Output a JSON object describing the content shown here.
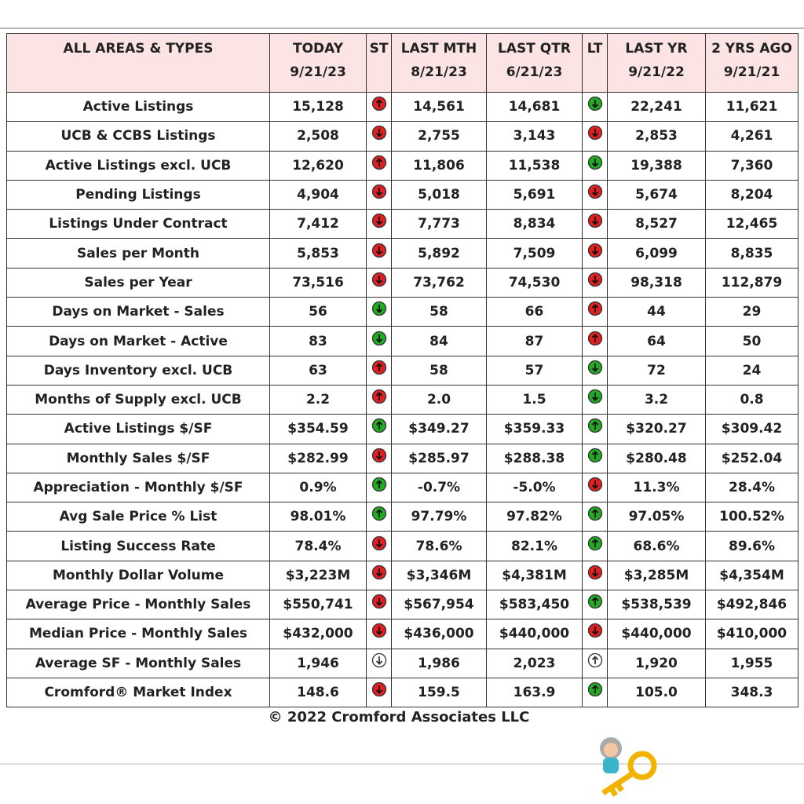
{
  "table": {
    "header": [
      [
        "ALL AREAS & TYPES"
      ],
      [
        "TODAY",
        "9/21/23"
      ],
      [
        "ST"
      ],
      [
        "LAST MTH",
        "8/21/23"
      ],
      [
        "LAST QTR",
        "6/21/23"
      ],
      [
        "LT"
      ],
      [
        "LAST YR",
        "9/21/22"
      ],
      [
        "2 YRS AGO",
        "9/21/21"
      ]
    ],
    "rows": [
      [
        "Active Listings",
        "15,128",
        {
          "arrow": "up",
          "color": "red"
        },
        "14,561",
        "14,681",
        {
          "arrow": "down",
          "color": "green"
        },
        "22,241",
        "11,621"
      ],
      [
        "UCB & CCBS Listings",
        "2,508",
        {
          "arrow": "down",
          "color": "red"
        },
        "2,755",
        "3,143",
        {
          "arrow": "down",
          "color": "red"
        },
        "2,853",
        "4,261"
      ],
      [
        "Active Listings excl. UCB",
        "12,620",
        {
          "arrow": "up",
          "color": "red"
        },
        "11,806",
        "11,538",
        {
          "arrow": "down",
          "color": "green"
        },
        "19,388",
        "7,360"
      ],
      [
        "Pending Listings",
        "4,904",
        {
          "arrow": "down",
          "color": "red"
        },
        "5,018",
        "5,691",
        {
          "arrow": "down",
          "color": "red"
        },
        "5,674",
        "8,204"
      ],
      [
        "Listings Under Contract",
        "7,412",
        {
          "arrow": "down",
          "color": "red"
        },
        "7,773",
        "8,834",
        {
          "arrow": "down",
          "color": "red"
        },
        "8,527",
        "12,465"
      ],
      [
        "Sales per Month",
        "5,853",
        {
          "arrow": "down",
          "color": "red"
        },
        "5,892",
        "7,509",
        {
          "arrow": "down",
          "color": "red"
        },
        "6,099",
        "8,835"
      ],
      [
        "Sales per Year",
        "73,516",
        {
          "arrow": "down",
          "color": "red"
        },
        "73,762",
        "74,530",
        {
          "arrow": "down",
          "color": "red"
        },
        "98,318",
        "112,879"
      ],
      [
        "Days on Market - Sales",
        "56",
        {
          "arrow": "down",
          "color": "green"
        },
        "58",
        "66",
        {
          "arrow": "up",
          "color": "red"
        },
        "44",
        "29"
      ],
      [
        "Days on Market - Active",
        "83",
        {
          "arrow": "down",
          "color": "green"
        },
        "84",
        "87",
        {
          "arrow": "up",
          "color": "red"
        },
        "64",
        "50"
      ],
      [
        "Days Inventory excl. UCB",
        "63",
        {
          "arrow": "up",
          "color": "red"
        },
        "58",
        "57",
        {
          "arrow": "down",
          "color": "green"
        },
        "72",
        "24"
      ],
      [
        "Months of Supply excl. UCB",
        "2.2",
        {
          "arrow": "up",
          "color": "red"
        },
        "2.0",
        "1.5",
        {
          "arrow": "down",
          "color": "green"
        },
        "3.2",
        "0.8"
      ],
      [
        "Active Listings $/SF",
        "$354.59",
        {
          "arrow": "up",
          "color": "green"
        },
        "$349.27",
        "$359.33",
        {
          "arrow": "up",
          "color": "green"
        },
        "$320.27",
        "$309.42"
      ],
      [
        "Monthly Sales $/SF",
        "$282.99",
        {
          "arrow": "down",
          "color": "red"
        },
        "$285.97",
        "$288.38",
        {
          "arrow": "up",
          "color": "green"
        },
        "$280.48",
        "$252.04"
      ],
      [
        "Appreciation - Monthly $/SF",
        "0.9%",
        {
          "arrow": "up",
          "color": "green"
        },
        "-0.7%",
        "-5.0%",
        {
          "arrow": "down",
          "color": "red"
        },
        "11.3%",
        "28.4%"
      ],
      [
        "Avg Sale Price % List",
        "98.01%",
        {
          "arrow": "up",
          "color": "green"
        },
        "97.79%",
        "97.82%",
        {
          "arrow": "up",
          "color": "green"
        },
        "97.05%",
        "100.52%"
      ],
      [
        "Listing Success Rate",
        "78.4%",
        {
          "arrow": "down",
          "color": "red"
        },
        "78.6%",
        "82.1%",
        {
          "arrow": "up",
          "color": "green"
        },
        "68.6%",
        "89.6%"
      ],
      [
        "Monthly Dollar Volume",
        "$3,223M",
        {
          "arrow": "down",
          "color": "red"
        },
        "$3,346M",
        "$4,381M",
        {
          "arrow": "down",
          "color": "red"
        },
        "$3,285M",
        "$4,354M"
      ],
      [
        "Average Price - Monthly Sales",
        "$550,741",
        {
          "arrow": "down",
          "color": "red"
        },
        "$567,954",
        "$583,450",
        {
          "arrow": "up",
          "color": "green"
        },
        "$538,539",
        "$492,846"
      ],
      [
        "Median Price - Monthly Sales",
        "$432,000",
        {
          "arrow": "down",
          "color": "red"
        },
        "$436,000",
        "$440,000",
        {
          "arrow": "down",
          "color": "red"
        },
        "$440,000",
        "$410,000"
      ],
      [
        "Average SF - Monthly Sales",
        "1,946",
        {
          "arrow": "down",
          "color": "white"
        },
        "1,986",
        "2,023",
        {
          "arrow": "up",
          "color": "white"
        },
        "1,920",
        "1,955"
      ],
      [
        "Cromford® Market Index",
        "148.6",
        {
          "arrow": "down",
          "color": "red"
        },
        "159.5",
        "163.9",
        {
          "arrow": "up",
          "color": "green"
        },
        "105.0",
        "348.3"
      ]
    ]
  },
  "footer": "© 2022 Cromford Associates LLC"
}
